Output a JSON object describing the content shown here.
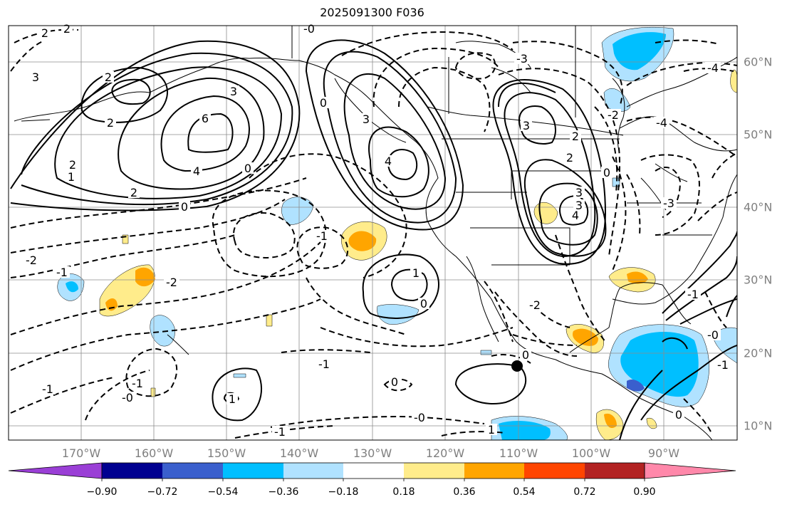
{
  "title": "2025091300 F036",
  "lon_ticks": [
    "170°W",
    "160°W",
    "150°W",
    "140°W",
    "130°W",
    "120°W",
    "110°W",
    "100°W",
    "90°W"
  ],
  "lat_ticks": [
    "60°N",
    "50°N",
    "40°N",
    "30°N",
    "20°N",
    "10°N"
  ],
  "colorbar": {
    "labels": [
      "−0.90",
      "−0.72",
      "−0.54",
      "−0.36",
      "−0.18",
      "0.18",
      "0.36",
      "0.54",
      "0.72",
      "0.90"
    ],
    "colors": [
      "#9a3fd6",
      "#000090",
      "#3a5fcd",
      "#00bfff",
      "#b0e2ff",
      "#ffffff",
      "#ffec8b",
      "#ffa500",
      "#ff4500",
      "#b22222",
      "#ff88aa"
    ]
  },
  "contour_labels": [
    {
      "text": "2"
    },
    {
      "text": "2"
    },
    {
      "text": "3"
    },
    {
      "text": "2"
    },
    {
      "text": "2"
    },
    {
      "text": "6"
    },
    {
      "text": "3"
    },
    {
      "text": "4"
    },
    {
      "text": "2"
    },
    {
      "text": "2"
    },
    {
      "text": "1"
    },
    {
      "text": "0"
    },
    {
      "text": "0"
    },
    {
      "text": "-0"
    },
    {
      "text": "0"
    },
    {
      "text": "3"
    },
    {
      "text": "4"
    },
    {
      "text": "3"
    },
    {
      "text": "3"
    },
    {
      "text": "2"
    },
    {
      "text": "3"
    },
    {
      "text": "4"
    },
    {
      "text": "2"
    },
    {
      "text": "0"
    },
    {
      "text": "-3"
    },
    {
      "text": "-4"
    },
    {
      "text": "-4"
    },
    {
      "text": "-3"
    },
    {
      "text": "-2"
    },
    {
      "text": "-1"
    },
    {
      "text": "-1"
    },
    {
      "text": "-2"
    },
    {
      "text": "1"
    },
    {
      "text": "0"
    },
    {
      "text": "-2"
    },
    {
      "text": "-1"
    },
    {
      "text": "0"
    },
    {
      "text": "0"
    },
    {
      "text": "1"
    },
    {
      "text": "-1"
    },
    {
      "text": "-0"
    },
    {
      "text": "-1"
    },
    {
      "text": "-0"
    },
    {
      "text": "-1"
    },
    {
      "text": "-2"
    },
    {
      "text": "1"
    },
    {
      "text": "-1"
    },
    {
      "text": "0"
    },
    {
      "text": "-0"
    },
    {
      "text": "-1"
    }
  ]
}
